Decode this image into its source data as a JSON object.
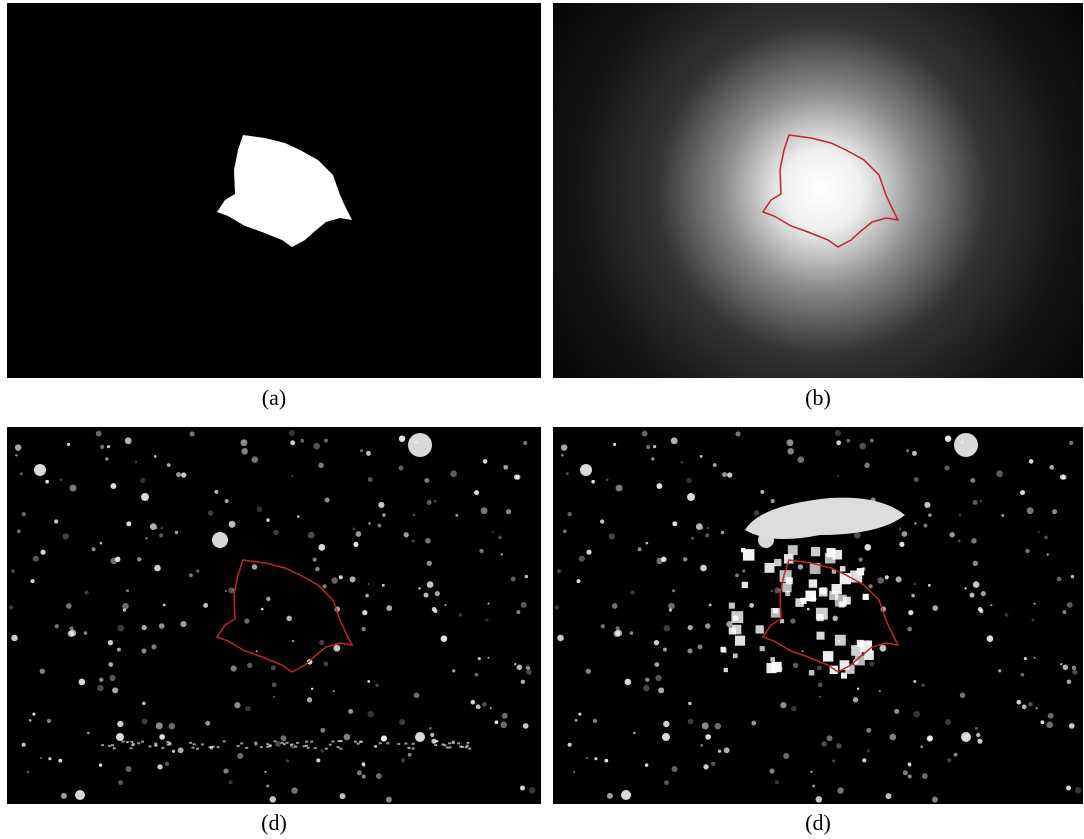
{
  "panels": [
    {
      "caption": "(a)"
    },
    {
      "caption": "(b)"
    },
    {
      "caption": "(d)"
    },
    {
      "caption": "(d)"
    }
  ]
}
